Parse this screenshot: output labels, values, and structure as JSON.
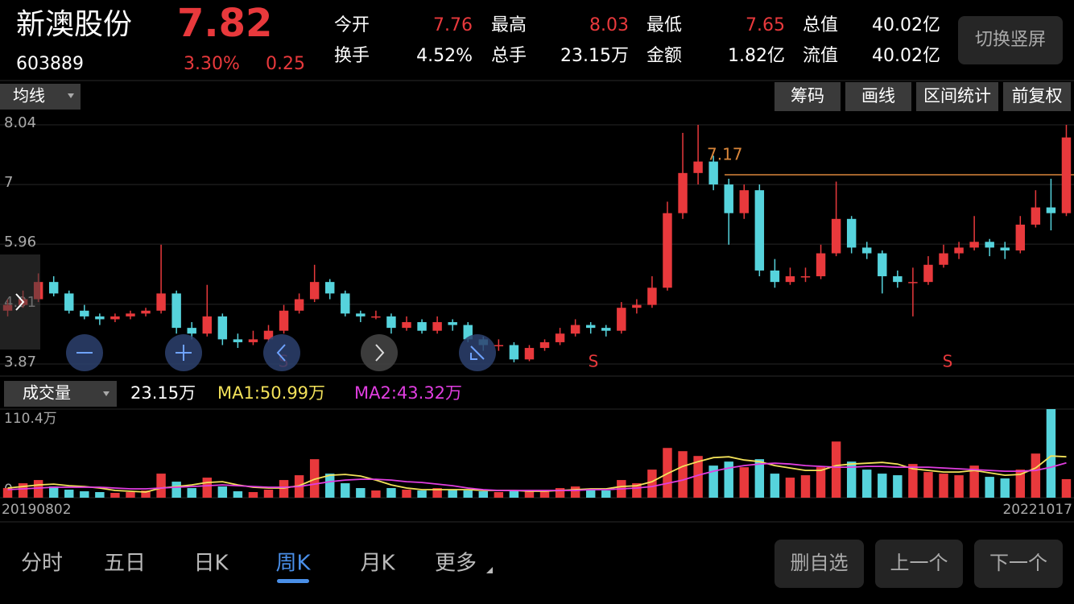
{
  "header": {
    "name": "新澳股份",
    "price": 7.82,
    "code": "603889",
    "change_pct": "3.30%",
    "change": 0.25,
    "switch_button": "切换竖屏"
  },
  "stats": [
    {
      "label": "今开",
      "value": 7.76
    },
    {
      "label": "最高",
      "value": 8.03
    },
    {
      "label": "最低",
      "value": 7.65
    },
    {
      "label": "总值",
      "value": "40.02亿"
    },
    {
      "label": "换手",
      "value": "4.52%"
    },
    {
      "label": "总手",
      "value": "23.15万"
    },
    {
      "label": "金额",
      "value": "1.82亿"
    },
    {
      "label": "流值",
      "value": "40.02亿"
    }
  ],
  "toolbar": {
    "indicator": "均线",
    "buttons": [
      "筹码",
      "画线",
      "区间统计",
      "前复权"
    ]
  },
  "price_chart": {
    "type": "candlestick",
    "ylim": [
      3.87,
      8.04
    ],
    "yticks": [
      8.04,
      7.0,
      5.96,
      4.91,
      3.87
    ],
    "reference": {
      "value": 7.17,
      "color": "#d9863a"
    },
    "signals": [
      "S",
      "S",
      "S"
    ],
    "up_color": "#e8393c",
    "down_color": "#56d3dc",
    "candles": [
      [
        4.8,
        5.0,
        4.7,
        4.9
      ],
      [
        4.9,
        5.15,
        4.85,
        5.0
      ],
      [
        5.0,
        5.45,
        4.95,
        5.3
      ],
      [
        5.3,
        5.4,
        5.05,
        5.1
      ],
      [
        5.1,
        5.15,
        4.75,
        4.8
      ],
      [
        4.8,
        4.9,
        4.65,
        4.7
      ],
      [
        4.7,
        4.75,
        4.55,
        4.65
      ],
      [
        4.65,
        4.75,
        4.6,
        4.7
      ],
      [
        4.7,
        4.8,
        4.65,
        4.75
      ],
      [
        4.75,
        4.85,
        4.7,
        4.8
      ],
      [
        4.8,
        5.95,
        4.75,
        5.1
      ],
      [
        5.1,
        5.15,
        4.4,
        4.5
      ],
      [
        4.5,
        4.6,
        4.3,
        4.4
      ],
      [
        4.4,
        5.25,
        4.35,
        4.7
      ],
      [
        4.7,
        4.75,
        4.2,
        4.3
      ],
      [
        4.3,
        4.4,
        4.15,
        4.25
      ],
      [
        4.25,
        4.45,
        4.2,
        4.3
      ],
      [
        4.3,
        4.55,
        4.25,
        4.45
      ],
      [
        4.45,
        4.9,
        4.4,
        4.8
      ],
      [
        4.8,
        5.1,
        4.75,
        5.0
      ],
      [
        5.0,
        5.6,
        4.95,
        5.3
      ],
      [
        5.3,
        5.35,
        5.0,
        5.1
      ],
      [
        5.1,
        5.15,
        4.7,
        4.75
      ],
      [
        4.75,
        4.8,
        4.6,
        4.7
      ],
      [
        4.7,
        4.8,
        4.65,
        4.7
      ],
      [
        4.7,
        4.75,
        4.4,
        4.5
      ],
      [
        4.5,
        4.7,
        4.45,
        4.6
      ],
      [
        4.6,
        4.65,
        4.4,
        4.45
      ],
      [
        4.45,
        4.7,
        4.4,
        4.6
      ],
      [
        4.6,
        4.65,
        4.45,
        4.55
      ],
      [
        4.55,
        4.6,
        4.25,
        4.3
      ],
      [
        4.3,
        4.35,
        4.1,
        4.2
      ],
      [
        4.2,
        4.3,
        4.1,
        4.2
      ],
      [
        4.2,
        4.25,
        3.9,
        3.95
      ],
      [
        3.95,
        4.2,
        3.92,
        4.15
      ],
      [
        4.15,
        4.3,
        4.1,
        4.25
      ],
      [
        4.25,
        4.5,
        4.2,
        4.4
      ],
      [
        4.4,
        4.65,
        4.35,
        4.55
      ],
      [
        4.55,
        4.6,
        4.4,
        4.5
      ],
      [
        4.5,
        4.55,
        4.35,
        4.45
      ],
      [
        4.45,
        4.95,
        4.4,
        4.85
      ],
      [
        4.85,
        5.0,
        4.75,
        4.9
      ],
      [
        4.9,
        5.4,
        4.85,
        5.2
      ],
      [
        5.2,
        6.7,
        5.15,
        6.5
      ],
      [
        6.5,
        7.9,
        6.4,
        7.2
      ],
      [
        7.2,
        8.04,
        7.0,
        7.4
      ],
      [
        7.4,
        7.5,
        6.9,
        7.0
      ],
      [
        7.0,
        7.1,
        5.95,
        6.5
      ],
      [
        6.5,
        7.0,
        6.4,
        6.9
      ],
      [
        6.9,
        7.0,
        5.4,
        5.5
      ],
      [
        5.5,
        5.7,
        5.2,
        5.3
      ],
      [
        5.3,
        5.55,
        5.25,
        5.4
      ],
      [
        5.4,
        5.55,
        5.3,
        5.4
      ],
      [
        5.4,
        5.95,
        5.35,
        5.8
      ],
      [
        5.8,
        7.05,
        5.75,
        6.4
      ],
      [
        6.4,
        6.45,
        5.8,
        5.9
      ],
      [
        5.9,
        6.0,
        5.7,
        5.8
      ],
      [
        5.8,
        5.85,
        5.1,
        5.4
      ],
      [
        5.4,
        5.5,
        5.2,
        5.3
      ],
      [
        5.3,
        5.55,
        4.7,
        5.3
      ],
      [
        5.3,
        5.75,
        5.25,
        5.6
      ],
      [
        5.6,
        5.95,
        5.55,
        5.8
      ],
      [
        5.8,
        6.0,
        5.7,
        5.9
      ],
      [
        5.9,
        6.45,
        5.85,
        6.0
      ],
      [
        6.0,
        6.05,
        5.75,
        5.9
      ],
      [
        5.9,
        6.0,
        5.7,
        5.85
      ],
      [
        5.85,
        6.45,
        5.8,
        6.3
      ],
      [
        6.3,
        6.9,
        6.25,
        6.6
      ],
      [
        6.6,
        7.1,
        6.2,
        6.5
      ],
      [
        6.5,
        8.04,
        6.45,
        7.82
      ]
    ]
  },
  "volume_chart": {
    "type": "bar",
    "indicator": "成交量",
    "current": "23.15万",
    "ylim": [
      0,
      110.4
    ],
    "yticks": [
      0,
      {
        "value": 110.4,
        "label": "110.4万"
      }
    ],
    "x_start": "20190802",
    "x_end": "20221017",
    "values": [
      12,
      18,
      22,
      14,
      10,
      8,
      7,
      6,
      7,
      9,
      30,
      20,
      12,
      25,
      14,
      8,
      7,
      10,
      22,
      28,
      48,
      30,
      18,
      12,
      9,
      12,
      10,
      9,
      12,
      10,
      9,
      8,
      7,
      9,
      8,
      8,
      12,
      14,
      10,
      9,
      22,
      18,
      35,
      62,
      58,
      52,
      40,
      45,
      38,
      48,
      30,
      25,
      28,
      38,
      70,
      45,
      35,
      30,
      28,
      42,
      32,
      30,
      28,
      40,
      26,
      24,
      35,
      55,
      110.4,
      23.15
    ],
    "series": [
      {
        "name": "MA1:50.99万",
        "color": "#f3e25a",
        "values": [
          12,
          14,
          16,
          17,
          15,
          14,
          12,
          9,
          8,
          7,
          12,
          14,
          16,
          19,
          20,
          16,
          13,
          12,
          12,
          15,
          23,
          28,
          29,
          27,
          22,
          16,
          12,
          10,
          10,
          10,
          10,
          9,
          9,
          9,
          8,
          8,
          9,
          10,
          11,
          11,
          14,
          15,
          20,
          30,
          39,
          45,
          50,
          51,
          47,
          45,
          40,
          37,
          34,
          34,
          40,
          42,
          43,
          44,
          42,
          36,
          34,
          32,
          32,
          34,
          31,
          28,
          29,
          37,
          52,
          50.99
        ]
      },
      {
        "name": "MA2:43.32万",
        "color": "#e03ee0",
        "values": [
          10,
          11,
          12,
          13,
          13,
          13,
          13,
          12,
          11,
          11,
          12,
          13,
          14,
          15,
          16,
          15,
          14,
          13,
          13,
          14,
          17,
          20,
          22,
          23,
          23,
          22,
          20,
          19,
          17,
          15,
          12,
          10,
          9,
          9,
          9,
          9,
          9,
          9,
          10,
          10,
          11,
          12,
          14,
          18,
          22,
          28,
          33,
          37,
          40,
          42,
          43,
          42,
          40,
          39,
          38,
          38,
          39,
          39,
          38,
          38,
          38,
          37,
          36,
          35,
          34,
          33,
          33,
          34,
          38,
          43.32
        ]
      }
    ]
  },
  "footer": {
    "tabs": [
      "分时",
      "五日",
      "日K",
      "周K",
      "月K",
      "更多"
    ],
    "active_tab": 3,
    "buttons": [
      "删自选",
      "上一个",
      "下一个"
    ]
  }
}
